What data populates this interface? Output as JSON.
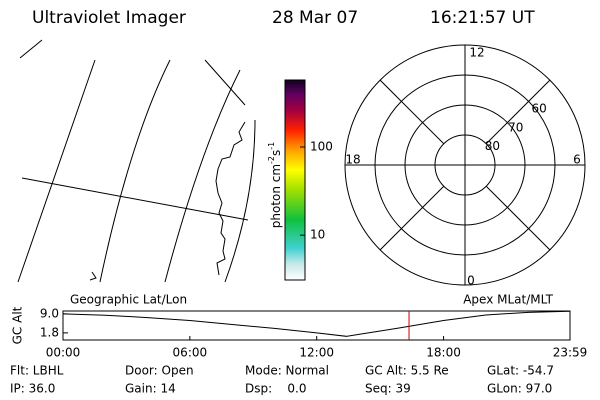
{
  "header": {
    "title": "Ultraviolet Imager",
    "date": "28 Mar 07",
    "time": "16:21:57 UT"
  },
  "colorbar": {
    "label": "photon cm",
    "exp1": "-2",
    "unit2": "s",
    "exp2": "-1",
    "lim": [
      3.1,
      575
    ],
    "log": true,
    "ticks": [
      100,
      10
    ]
  },
  "polar": {
    "rlim": [
      90,
      50
    ],
    "rticks": [
      80,
      70,
      60
    ],
    "mlt": [
      "12",
      "18",
      "6",
      "0"
    ]
  },
  "chart_data": {
    "type": "line",
    "ylabel": "GC Alt",
    "left_label": "Geographic Lat/Lon",
    "right_label": "Apex MLat/MLT",
    "x": [
      0,
      2,
      4,
      6,
      8,
      10,
      12,
      13.4,
      15,
      16,
      18,
      20,
      22,
      23.98
    ],
    "series": [
      {
        "name": "GC Alt",
        "color": "#000000",
        "values": [
          9.0,
          8.5,
          7.6,
          6.5,
          5.0,
          3.5,
          1.8,
          0.5,
          2.5,
          3.8,
          6.5,
          8.6,
          9.6,
          10.0
        ]
      }
    ],
    "current_time": 16.366,
    "marker_color": "#cc0000",
    "xlim": [
      0,
      23.98
    ],
    "ylim": [
      -0.9,
      10.1
    ],
    "xticks": [
      {
        "value": 0,
        "label": "00:00"
      },
      {
        "value": 6,
        "label": "06:00"
      },
      {
        "value": 12,
        "label": "12:00"
      },
      {
        "value": 18,
        "label": "18:00"
      },
      {
        "value": 23.98,
        "label": "23:59"
      }
    ],
    "yticks": [
      {
        "value": 9.0,
        "label": "9.0"
      },
      1.8
    ]
  },
  "footer": [
    [
      "Flt: LBHL",
      "Door: Open",
      "Mode: Normal",
      "GC Alt: 5.5 Re",
      "GLat: -54.7"
    ],
    [
      "IP: 36.0",
      "Gain: 14",
      "Dsp:    0.0",
      "Seq: 39",
      "GLon: 97.0"
    ]
  ]
}
